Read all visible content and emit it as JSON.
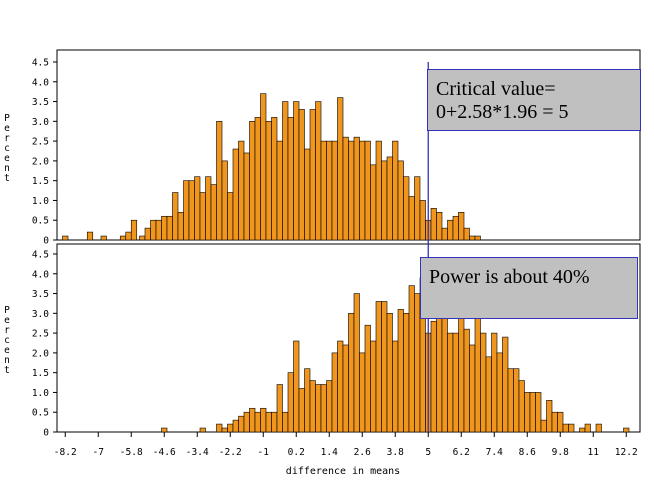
{
  "colors": {
    "bar_fill": "#f0961e",
    "bar_edge": "#000000",
    "critical_line": "#3333bb",
    "callout_fill": "#c0c0c0"
  },
  "chart_data": [
    {
      "type": "bar",
      "panel": "top",
      "ylabel": "Percent",
      "ylim": [
        0,
        4.5
      ],
      "yticks": [
        "0",
        "0.5",
        "1.0",
        "1.5",
        "2.0",
        "2.5",
        "3.0",
        "3.5",
        "4.0",
        "4.5"
      ],
      "x": [
        -8.2,
        -7.7,
        -7.3,
        -6.8,
        -6.6,
        -6.1,
        -5.9,
        -5.7,
        -5.4,
        -5.2,
        -5.0,
        -4.8,
        -4.6,
        -4.4,
        -4.2,
        -4.0,
        -3.8,
        -3.6,
        -3.4,
        -3.2,
        -3.0,
        -2.8,
        -2.6,
        -2.4,
        -2.2,
        -2.0,
        -1.8,
        -1.6,
        -1.4,
        -1.2,
        -1.0,
        -0.8,
        -0.6,
        -0.4,
        -0.2,
        0.0,
        0.2,
        0.4,
        0.6,
        0.8,
        1.0,
        1.2,
        1.4,
        1.6,
        1.8,
        2.0,
        2.2,
        2.4,
        2.6,
        2.8,
        3.0,
        3.2,
        3.4,
        3.6,
        3.8,
        4.0,
        4.2,
        4.4,
        4.6,
        4.8,
        5.0,
        5.2,
        5.4,
        5.6,
        5.8,
        6.0,
        6.2,
        6.4,
        6.6,
        6.8
      ],
      "values": [
        0.1,
        0,
        0.2,
        0.1,
        0,
        0.1,
        0.2,
        0.5,
        0.1,
        0.3,
        0.5,
        0.5,
        0.6,
        0.6,
        1.2,
        0.7,
        1.5,
        1.5,
        1.6,
        1.2,
        1.6,
        1.4,
        3.0,
        2.0,
        1.2,
        2.3,
        2.5,
        2.2,
        3.0,
        3.1,
        3.7,
        3.0,
        3.1,
        2.5,
        3.5,
        3.1,
        3.5,
        3.3,
        2.3,
        3.3,
        3.5,
        2.5,
        2.5,
        2.5,
        3.6,
        2.6,
        2.5,
        2.6,
        2.5,
        2.5,
        1.9,
        2.5,
        2.0,
        2.1,
        2.5,
        2.0,
        1.6,
        1.1,
        1.6,
        1.0,
        0.5,
        0.8,
        0.7,
        0.3,
        0.5,
        0.6,
        0.7,
        0.3,
        0.1,
        0.1
      ]
    },
    {
      "type": "bar",
      "panel": "bottom",
      "xlabel": "difference in means",
      "ylabel": "Percent",
      "ylim": [
        0,
        4.5
      ],
      "xlim": [
        -8.5,
        12.7
      ],
      "xticks": [
        "-8.2",
        "-7",
        "-5.8",
        "-4.6",
        "-3.4",
        "-2.2",
        "-1",
        "0.2",
        "1.4",
        "2.6",
        "3.8",
        "5",
        "6.2",
        "7.4",
        "8.6",
        "9.8",
        "11",
        "12.2"
      ],
      "yticks": [
        "0",
        "0.5",
        "1.0",
        "1.5",
        "2.0",
        "2.5",
        "3.0",
        "3.5",
        "4.0",
        "4.5"
      ],
      "x": [
        -4.6,
        -3.2,
        -2.6,
        -2.4,
        -2.2,
        -2.0,
        -1.8,
        -1.6,
        -1.4,
        -1.2,
        -1.0,
        -0.8,
        -0.6,
        -0.4,
        -0.2,
        0.0,
        0.2,
        0.4,
        0.6,
        0.8,
        1.0,
        1.2,
        1.4,
        1.6,
        1.8,
        2.0,
        2.2,
        2.4,
        2.6,
        2.8,
        3.0,
        3.2,
        3.4,
        3.6,
        3.8,
        4.0,
        4.2,
        4.4,
        4.6,
        4.8,
        5.0,
        5.2,
        5.4,
        5.6,
        5.8,
        6.0,
        6.2,
        6.4,
        6.6,
        6.8,
        7.0,
        7.2,
        7.4,
        7.6,
        7.8,
        8.0,
        8.2,
        8.4,
        8.6,
        8.8,
        9.0,
        9.2,
        9.4,
        9.6,
        9.8,
        10.0,
        10.2,
        10.4,
        10.6,
        10.8,
        11.0,
        11.2,
        11.4,
        11.6,
        11.8,
        12.0,
        12.2
      ],
      "values": [
        0.1,
        0.1,
        0.2,
        0.1,
        0.2,
        0.3,
        0.4,
        0.5,
        0.6,
        0.5,
        0.6,
        0.5,
        0.5,
        1.2,
        0.5,
        1.5,
        2.3,
        1.1,
        1.6,
        1.3,
        1.2,
        1.2,
        1.3,
        2.0,
        2.3,
        2.2,
        3.0,
        3.5,
        2.0,
        2.7,
        2.3,
        3.3,
        3.3,
        3.0,
        2.3,
        3.1,
        3.0,
        3.7,
        3.5,
        3.9,
        2.5,
        2.8,
        4.2,
        4.3,
        2.5,
        2.5,
        3.2,
        2.6,
        2.2,
        3.0,
        2.5,
        1.9,
        2.5,
        2.0,
        2.4,
        1.6,
        1.6,
        1.3,
        1.0,
        1.0,
        1.0,
        0.3,
        0.8,
        0.5,
        0.5,
        0.2,
        0.2,
        0.0,
        0.1,
        0.2,
        0.0,
        0.2,
        0.0,
        0.0,
        0.0,
        0.0,
        0.1
      ]
    }
  ],
  "annotations": {
    "critical_line_x": 5,
    "critical_value_label_1": "Critical value=",
    "critical_value_label_2": "0+2.58*1.96 = 5",
    "power_label": "Power is about 40%"
  }
}
